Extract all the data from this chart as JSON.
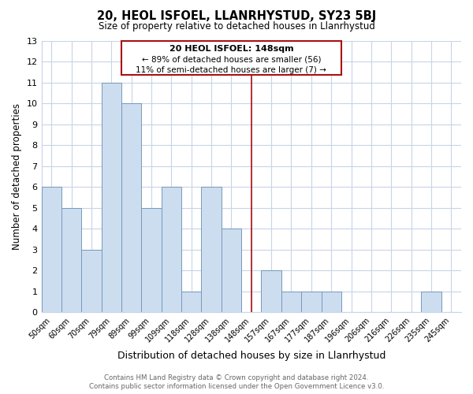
{
  "title": "20, HEOL ISFOEL, LLANRHYSTUD, SY23 5BJ",
  "subtitle": "Size of property relative to detached houses in Llanrhystud",
  "xlabel": "Distribution of detached houses by size in Llanrhystud",
  "ylabel": "Number of detached properties",
  "bar_labels": [
    "50sqm",
    "60sqm",
    "70sqm",
    "79sqm",
    "89sqm",
    "99sqm",
    "109sqm",
    "118sqm",
    "128sqm",
    "138sqm",
    "148sqm",
    "157sqm",
    "167sqm",
    "177sqm",
    "187sqm",
    "196sqm",
    "206sqm",
    "216sqm",
    "226sqm",
    "235sqm",
    "245sqm"
  ],
  "bar_values": [
    6,
    5,
    3,
    11,
    10,
    5,
    6,
    1,
    6,
    4,
    0,
    2,
    1,
    1,
    1,
    0,
    0,
    0,
    0,
    1,
    0
  ],
  "highlight_index": 10,
  "bar_color": "#ccddf0",
  "bar_edge_color": "#7799bb",
  "highlight_line_color": "#aa1111",
  "ylim": [
    0,
    13
  ],
  "yticks": [
    0,
    1,
    2,
    3,
    4,
    5,
    6,
    7,
    8,
    9,
    10,
    11,
    12,
    13
  ],
  "annotation_title": "20 HEOL ISFOEL: 148sqm",
  "annotation_line1": "← 89% of detached houses are smaller (56)",
  "annotation_line2": "11% of semi-detached houses are larger (7) →",
  "annotation_box_edge": "#aa1111",
  "footer_line1": "Contains HM Land Registry data © Crown copyright and database right 2024.",
  "footer_line2": "Contains public sector information licensed under the Open Government Licence v3.0.",
  "background_color": "#ffffff",
  "grid_color": "#c8d4e8"
}
